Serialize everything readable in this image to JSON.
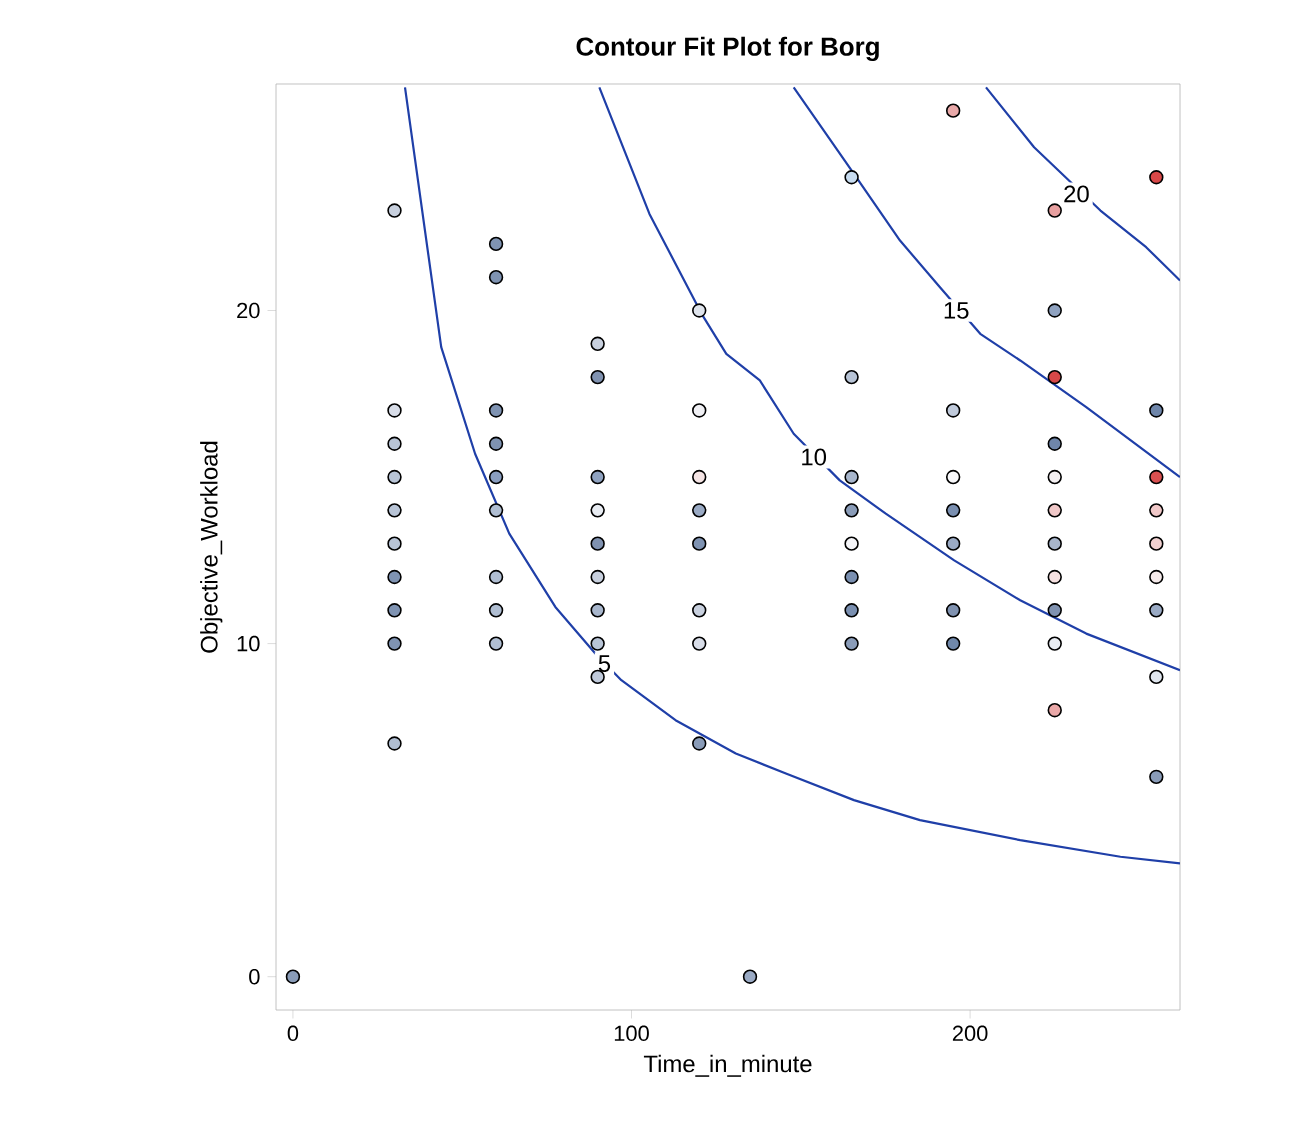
{
  "chart_data": {
    "type": "scatter",
    "title": "Contour Fit Plot for Borg",
    "xlabel": "Time_in_minute",
    "ylabel": "Objective_Workload",
    "xlim": [
      -5,
      262
    ],
    "ylim": [
      -1,
      26.8
    ],
    "xticks": [
      0,
      100,
      200
    ],
    "yticks": [
      0,
      10,
      20
    ],
    "grid": false,
    "marker": "circle",
    "annotations": [
      {
        "text": "5",
        "x": 92,
        "y": 9.4
      },
      {
        "text": "10",
        "x": 153.8,
        "y": 15.6
      },
      {
        "text": "15",
        "x": 195.9,
        "y": 20.0
      },
      {
        "text": "20",
        "x": 231.4,
        "y": 23.5
      }
    ],
    "series": [
      {
        "x": [
          0,
          30,
          30,
          30,
          30,
          30,
          30,
          30,
          30,
          30,
          30,
          60,
          60,
          60,
          60,
          60,
          60,
          60,
          60,
          60,
          90,
          90,
          90,
          90,
          90,
          90,
          90,
          90,
          90,
          120,
          120,
          120,
          120,
          120,
          120,
          120,
          120,
          135,
          165,
          165,
          165,
          165,
          165,
          165,
          165,
          165,
          195,
          195,
          195,
          195,
          195,
          195,
          195,
          225,
          225,
          225,
          225,
          225,
          225,
          225,
          225,
          225,
          225,
          225,
          255,
          255,
          255,
          255,
          255,
          255,
          255,
          255,
          255
        ],
        "values": [
          0,
          23,
          17,
          16,
          15,
          14,
          13,
          12,
          11,
          10,
          7,
          22,
          21,
          17,
          16,
          15,
          14,
          12,
          11,
          10,
          19,
          18,
          15,
          14,
          13,
          12,
          11,
          10,
          9,
          20,
          17,
          15,
          14,
          13,
          11,
          10,
          7,
          0,
          24,
          18,
          15,
          14,
          13,
          12,
          11,
          10,
          26,
          17,
          15,
          14,
          13,
          11,
          10,
          23,
          20,
          18,
          16,
          15,
          14,
          13,
          12,
          11,
          10,
          8,
          24,
          17,
          15,
          14,
          13,
          12,
          11,
          9,
          6
        ],
        "colors": [
          "#8a9cb8",
          "#c8d0de",
          "#d8dde8",
          "#b8c4d6",
          "#b8c4d6",
          "#b8c4d6",
          "#b8c4d6",
          "#7f93b2",
          "#7f93b2",
          "#7f93b2",
          "#b0bed2",
          "#7f93b2",
          "#7f93b2",
          "#7f93b2",
          "#7f93b2",
          "#8a9ec0",
          "#b0bed2",
          "#b0bed2",
          "#b0bed2",
          "#b0bed2",
          "#c8d0de",
          "#8092b0",
          "#8fa2c0",
          "#e8ecf2",
          "#8092b0",
          "#c8d0de",
          "#a8b6cc",
          "#b8c4d6",
          "#c0cadb",
          "#dfe4ec",
          "#f0f0f4",
          "#f5e4e4",
          "#9aaac4",
          "#7f93b2",
          "#c8d0de",
          "#d8dde8",
          "#8a9cb8",
          "#9aaac4",
          "#c8dcf0",
          "#b8c4d6",
          "#a8b6cc",
          "#8a9cb8",
          "#f5f5f8",
          "#7a8fb0",
          "#7a8fb0",
          "#8a9cb8",
          "#e8a8a8",
          "#c0cadb",
          "#f8f8fa",
          "#7a8fb0",
          "#9aaac4",
          "#8092b0",
          "#7088aa",
          "#e8a0a0",
          "#8fa2c0",
          "#d84848",
          "#6f86aa",
          "#f4f0f2",
          "#f0c8c8",
          "#a8b6cc",
          "#f5e0e0",
          "#8092b0",
          "#e8ecf2",
          "#eaa8a8",
          "#d84848",
          "#6f86aa",
          "#d85050",
          "#f0c8c8",
          "#f0d0d0",
          "#f5eaea",
          "#9aaac4",
          "#e0e6ee",
          "#8a9cb8"
        ]
      },
      {
        "type": "line",
        "marker": "none",
        "color": "#1f3fa8",
        "x": [
          33.1,
          43.8,
          53.8,
          63.9,
          77.5,
          89.3,
          97.0,
          113,
          130.8,
          145.6,
          165.7,
          185.2,
          214.8,
          244.4,
          262
        ],
        "values": [
          26.7,
          18.9,
          15.7,
          13.3,
          11.1,
          9.7,
          8.9,
          7.7,
          6.7,
          6.1,
          5.3,
          4.7,
          4.1,
          3.6,
          3.4
        ]
      },
      {
        "type": "line",
        "marker": "none",
        "color": "#1f3fa8",
        "x": [
          90.5,
          105.3,
          120.7,
          128,
          137.9,
          147.9,
          161.5,
          175.1,
          195.3,
          214.8,
          234.3,
          262
        ],
        "values": [
          26.7,
          22.9,
          19.9,
          18.7,
          17.9,
          16.3,
          14.9,
          13.9,
          12.5,
          11.3,
          10.3,
          9.2
        ]
      },
      {
        "type": "line",
        "marker": "none",
        "color": "#1f3fa8",
        "x": [
          147.9,
          165.7,
          179.3,
          191.1,
          203,
          214.8,
          234.3,
          262
        ],
        "values": [
          26.7,
          24.1,
          22.1,
          20.7,
          19.3,
          18.5,
          17.1,
          15.0
        ]
      },
      {
        "type": "line",
        "marker": "none",
        "color": "#1f3fa8",
        "x": [
          204.7,
          218.9,
          238.5,
          252,
          262
        ],
        "values": [
          26.7,
          24.9,
          23.0,
          21.9,
          20.9
        ]
      }
    ]
  }
}
